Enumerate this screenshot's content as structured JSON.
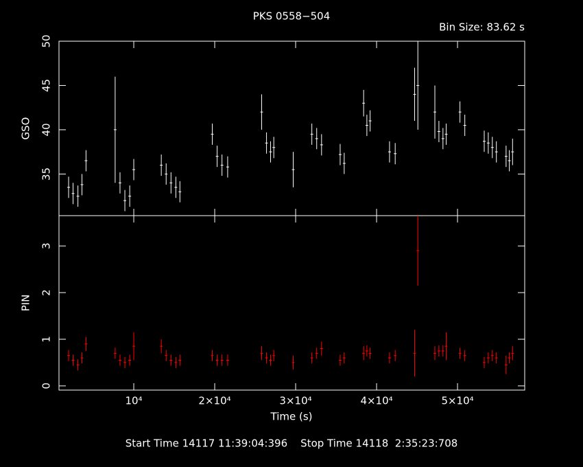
{
  "chart_data": [
    {
      "type": "errorbar",
      "title": "PKS 0558−504",
      "subtitle": "Bin Size: 83.62 s",
      "ylabel": "GSO",
      "color": "#ffffff",
      "x": [
        1950,
        2500,
        3100,
        3600,
        4100,
        7700,
        8300,
        8900,
        9500,
        10000,
        13400,
        14000,
        14600,
        15200,
        15700,
        19700,
        20300,
        20900,
        21600,
        25800,
        26400,
        26900,
        27300,
        29700,
        32000,
        32600,
        33200,
        35500,
        36000,
        38400,
        38800,
        39200,
        41600,
        42300,
        44700,
        45100,
        47200,
        47700,
        48200,
        48600,
        50300,
        50900,
        53300,
        53800,
        54300,
        54800,
        56000,
        56400,
        56800
      ],
      "values": [
        33.5,
        32.8,
        32.5,
        33.8,
        36.5,
        40,
        34,
        32,
        32.5,
        35.5,
        36,
        35,
        34,
        33.5,
        33,
        39.5,
        37,
        36,
        35.8,
        42,
        38.5,
        37.5,
        38,
        35.5,
        39.5,
        39,
        38.3,
        37.2,
        36.2,
        43,
        40.5,
        41,
        37.5,
        37.3,
        44,
        45,
        42,
        39.8,
        39,
        39.5,
        42,
        40.5,
        38.7,
        38.5,
        38,
        37.5,
        37,
        36.5,
        37.5
      ],
      "errors": [
        1.2,
        1.2,
        1.2,
        1.2,
        1.2,
        6,
        1.2,
        1.2,
        1.2,
        1.2,
        1.2,
        1.2,
        1.2,
        1.2,
        1.2,
        1.2,
        1.2,
        1.2,
        1.2,
        2,
        1.2,
        1.2,
        1.2,
        2,
        1.2,
        1.2,
        1.2,
        1.2,
        1.2,
        1.5,
        1.2,
        1.2,
        1.2,
        1.2,
        3,
        5,
        3,
        1.2,
        1.2,
        1.2,
        1.2,
        1.2,
        1.2,
        1.2,
        1.2,
        1.2,
        1.2,
        1.2,
        1.5
      ],
      "xlim": [
        760,
        58300
      ],
      "ylim": [
        30.3,
        50
      ],
      "yticks": [
        35,
        40,
        45,
        50
      ]
    },
    {
      "type": "errorbar",
      "ylabel": "PIN",
      "xlabel": "Time (s)",
      "color": "#ff0000",
      "x": [
        1950,
        2500,
        3100,
        3600,
        4100,
        7700,
        8300,
        8900,
        9500,
        10000,
        13400,
        14000,
        14600,
        15200,
        15700,
        19700,
        20300,
        20900,
        21600,
        25800,
        26400,
        26900,
        27300,
        29700,
        32000,
        32600,
        33200,
        35500,
        36000,
        38400,
        38800,
        39200,
        41600,
        42300,
        44700,
        45100,
        47200,
        47700,
        48200,
        48600,
        50300,
        50900,
        53300,
        53800,
        54300,
        54800,
        56000,
        56400,
        56800
      ],
      "values": [
        0.65,
        0.55,
        0.45,
        0.6,
        0.9,
        0.7,
        0.55,
        0.5,
        0.55,
        0.85,
        0.85,
        0.65,
        0.55,
        0.5,
        0.55,
        0.65,
        0.55,
        0.55,
        0.55,
        0.7,
        0.6,
        0.55,
        0.65,
        0.5,
        0.6,
        0.7,
        0.8,
        0.55,
        0.6,
        0.7,
        0.75,
        0.7,
        0.6,
        0.65,
        0.7,
        2.9,
        0.7,
        0.75,
        0.75,
        0.85,
        0.7,
        0.65,
        0.5,
        0.6,
        0.65,
        0.6,
        0.45,
        0.6,
        0.7
      ],
      "errors": [
        0.12,
        0.12,
        0.12,
        0.12,
        0.15,
        0.12,
        0.12,
        0.12,
        0.12,
        0.3,
        0.15,
        0.12,
        0.12,
        0.12,
        0.12,
        0.12,
        0.12,
        0.12,
        0.12,
        0.15,
        0.12,
        0.12,
        0.12,
        0.15,
        0.12,
        0.12,
        0.15,
        0.12,
        0.12,
        0.15,
        0.12,
        0.12,
        0.12,
        0.12,
        0.5,
        0.75,
        0.15,
        0.12,
        0.12,
        0.3,
        0.12,
        0.12,
        0.12,
        0.12,
        0.12,
        0.12,
        0.2,
        0.12,
        0.15
      ],
      "xlim": [
        760,
        58300
      ],
      "ylim": [
        -0.09,
        3.65
      ],
      "yticks": [
        0,
        1,
        2,
        3
      ],
      "xticks": [
        {
          "value": 10000,
          "label": "10⁴"
        },
        {
          "value": 20000,
          "label": "2×10⁴"
        },
        {
          "value": 30000,
          "label": "3×10⁴"
        },
        {
          "value": 40000,
          "label": "4×10⁴"
        },
        {
          "value": 50000,
          "label": "5×10⁴"
        }
      ]
    }
  ],
  "footer": "Start Time 14117 11:39:04:396    Stop Time 14118  2:35:23:708"
}
